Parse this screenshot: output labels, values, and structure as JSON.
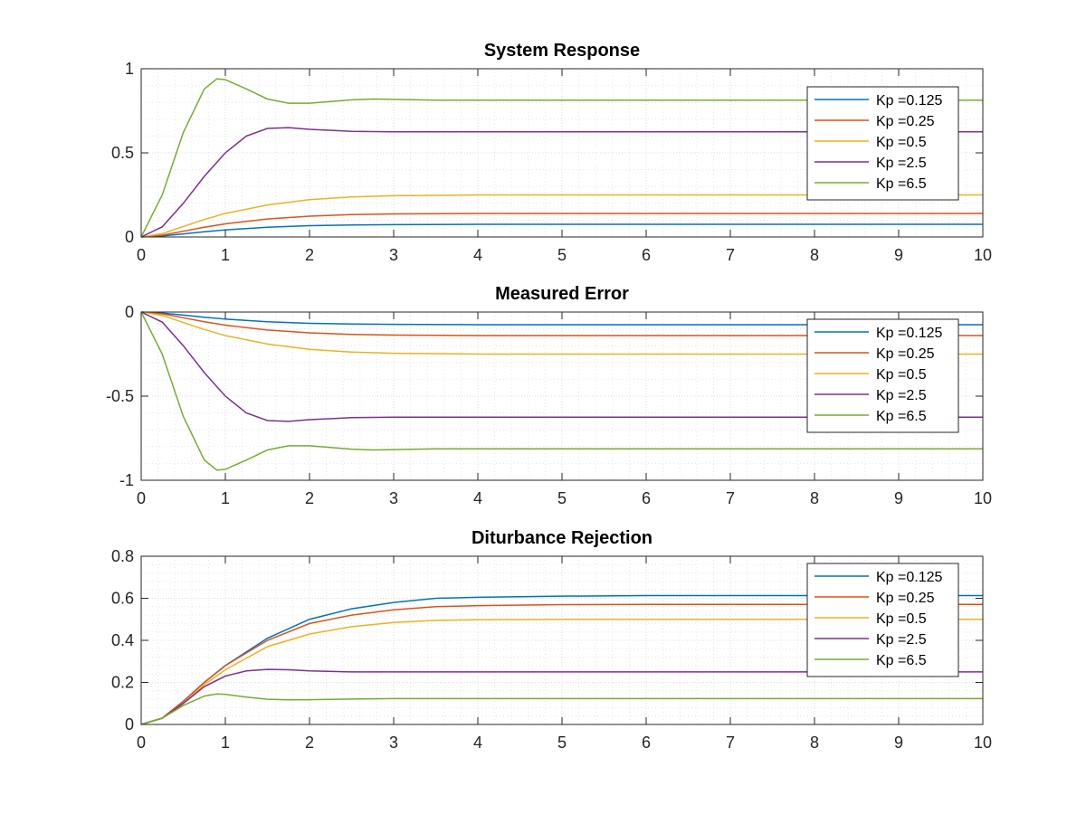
{
  "chart_data": [
    {
      "type": "line",
      "title": "System Response",
      "xlabel": "",
      "ylabel": "",
      "xlim": [
        0,
        10
      ],
      "ylim": [
        0,
        1
      ],
      "xticks": [
        "0",
        "1",
        "2",
        "3",
        "4",
        "5",
        "6",
        "7",
        "8",
        "9",
        "10"
      ],
      "yticks": [
        "0",
        "0.5",
        "1"
      ],
      "grid": true,
      "minor_grid": true,
      "legend_location": "top-right",
      "series": [
        {
          "name": "Kp =0.125",
          "color": "#0072BD",
          "x": [
            0,
            0.25,
            0.5,
            0.75,
            1,
            1.5,
            2,
            2.5,
            3,
            4,
            5,
            6,
            7,
            8,
            9,
            10
          ],
          "y": [
            0,
            0.006,
            0.018,
            0.031,
            0.042,
            0.058,
            0.067,
            0.071,
            0.073,
            0.075,
            0.075,
            0.075,
            0.075,
            0.075,
            0.075,
            0.075
          ]
        },
        {
          "name": "Kp =0.25",
          "color": "#D95319",
          "x": [
            0,
            0.25,
            0.5,
            0.75,
            1,
            1.5,
            2,
            2.5,
            3,
            4,
            5,
            6,
            7,
            8,
            9,
            10
          ],
          "y": [
            0,
            0.011,
            0.034,
            0.058,
            0.078,
            0.107,
            0.124,
            0.133,
            0.137,
            0.14,
            0.14,
            0.14,
            0.14,
            0.14,
            0.14,
            0.14
          ]
        },
        {
          "name": "Kp =0.5",
          "color": "#EDB120",
          "x": [
            0,
            0.25,
            0.5,
            0.75,
            1,
            1.5,
            2,
            2.5,
            3,
            4,
            5,
            6,
            7,
            8,
            9,
            10
          ],
          "y": [
            0,
            0.02,
            0.062,
            0.104,
            0.14,
            0.19,
            0.222,
            0.238,
            0.245,
            0.25,
            0.25,
            0.25,
            0.25,
            0.25,
            0.25,
            0.25
          ]
        },
        {
          "name": "Kp =2.5",
          "color": "#7E2F8E",
          "x": [
            0,
            0.25,
            0.5,
            0.75,
            1,
            1.25,
            1.5,
            1.75,
            2,
            2.5,
            3,
            4,
            5,
            6,
            7,
            8,
            9,
            10
          ],
          "y": [
            0,
            0.06,
            0.2,
            0.36,
            0.5,
            0.6,
            0.645,
            0.65,
            0.64,
            0.628,
            0.625,
            0.625,
            0.625,
            0.625,
            0.625,
            0.625,
            0.625,
            0.625
          ]
        },
        {
          "name": "Kp =6.5",
          "color": "#77AC30",
          "x": [
            0,
            0.25,
            0.5,
            0.75,
            0.9,
            1,
            1.25,
            1.5,
            1.75,
            2,
            2.25,
            2.5,
            2.75,
            3,
            3.5,
            4,
            5,
            6,
            7,
            8,
            9,
            10
          ],
          "y": [
            0,
            0.25,
            0.62,
            0.88,
            0.94,
            0.935,
            0.88,
            0.82,
            0.795,
            0.795,
            0.805,
            0.815,
            0.82,
            0.818,
            0.813,
            0.813,
            0.813,
            0.813,
            0.813,
            0.813,
            0.813,
            0.813
          ]
        }
      ]
    },
    {
      "type": "line",
      "title": "Measured Error",
      "xlabel": "",
      "ylabel": "",
      "xlim": [
        0,
        10
      ],
      "ylim": [
        -1,
        0
      ],
      "xticks": [
        "0",
        "1",
        "2",
        "3",
        "4",
        "5",
        "6",
        "7",
        "8",
        "9",
        "10"
      ],
      "yticks": [
        "-1",
        "-0.5",
        "0"
      ],
      "grid": true,
      "minor_grid": true,
      "legend_location": "right",
      "series": [
        {
          "name": "Kp =0.125",
          "color": "#0072BD",
          "x": [
            0,
            0.25,
            0.5,
            0.75,
            1,
            1.5,
            2,
            2.5,
            3,
            4,
            5,
            6,
            7,
            8,
            9,
            10
          ],
          "y": [
            0,
            -0.006,
            -0.018,
            -0.031,
            -0.042,
            -0.058,
            -0.067,
            -0.071,
            -0.073,
            -0.075,
            -0.075,
            -0.075,
            -0.075,
            -0.075,
            -0.075,
            -0.075
          ]
        },
        {
          "name": "Kp =0.25",
          "color": "#D95319",
          "x": [
            0,
            0.25,
            0.5,
            0.75,
            1,
            1.5,
            2,
            2.5,
            3,
            4,
            5,
            6,
            7,
            8,
            9,
            10
          ],
          "y": [
            0,
            -0.011,
            -0.034,
            -0.058,
            -0.078,
            -0.107,
            -0.124,
            -0.133,
            -0.137,
            -0.14,
            -0.14,
            -0.14,
            -0.14,
            -0.14,
            -0.14,
            -0.14
          ]
        },
        {
          "name": "Kp =0.5",
          "color": "#EDB120",
          "x": [
            0,
            0.25,
            0.5,
            0.75,
            1,
            1.5,
            2,
            2.5,
            3,
            4,
            5,
            6,
            7,
            8,
            9,
            10
          ],
          "y": [
            0,
            -0.02,
            -0.062,
            -0.104,
            -0.14,
            -0.19,
            -0.222,
            -0.238,
            -0.245,
            -0.25,
            -0.25,
            -0.25,
            -0.25,
            -0.25,
            -0.25,
            -0.25
          ]
        },
        {
          "name": "Kp =2.5",
          "color": "#7E2F8E",
          "x": [
            0,
            0.25,
            0.5,
            0.75,
            1,
            1.25,
            1.5,
            1.75,
            2,
            2.5,
            3,
            4,
            5,
            6,
            7,
            8,
            9,
            10
          ],
          "y": [
            0,
            -0.06,
            -0.2,
            -0.36,
            -0.5,
            -0.6,
            -0.645,
            -0.65,
            -0.64,
            -0.628,
            -0.625,
            -0.625,
            -0.625,
            -0.625,
            -0.625,
            -0.625,
            -0.625,
            -0.625
          ]
        },
        {
          "name": "Kp =6.5",
          "color": "#77AC30",
          "x": [
            0,
            0.25,
            0.5,
            0.75,
            0.9,
            1,
            1.25,
            1.5,
            1.75,
            2,
            2.25,
            2.5,
            2.75,
            3,
            3.5,
            4,
            5,
            6,
            7,
            8,
            9,
            10
          ],
          "y": [
            0,
            -0.25,
            -0.62,
            -0.88,
            -0.94,
            -0.935,
            -0.88,
            -0.82,
            -0.795,
            -0.795,
            -0.805,
            -0.815,
            -0.82,
            -0.818,
            -0.813,
            -0.813,
            -0.813,
            -0.813,
            -0.813,
            -0.813,
            -0.813,
            -0.813
          ]
        }
      ]
    },
    {
      "type": "line",
      "title": "Diturbance Rejection",
      "xlabel": "",
      "ylabel": "",
      "xlim": [
        0,
        10
      ],
      "ylim": [
        0,
        0.8
      ],
      "xticks": [
        "0",
        "1",
        "2",
        "3",
        "4",
        "5",
        "6",
        "7",
        "8",
        "9",
        "10"
      ],
      "yticks": [
        "0",
        "0.2",
        "0.4",
        "0.6",
        "0.8"
      ],
      "grid": true,
      "minor_grid": true,
      "legend_location": "top-right",
      "series": [
        {
          "name": "Kp =0.125",
          "color": "#0072BD",
          "x": [
            0,
            0.25,
            0.5,
            0.75,
            1,
            1.5,
            2,
            2.5,
            3,
            3.5,
            4,
            5,
            6,
            7,
            8,
            9,
            10
          ],
          "y": [
            0,
            0.03,
            0.11,
            0.2,
            0.28,
            0.41,
            0.5,
            0.55,
            0.58,
            0.6,
            0.605,
            0.61,
            0.613,
            0.613,
            0.613,
            0.613,
            0.613
          ]
        },
        {
          "name": "Kp =0.25",
          "color": "#D95319",
          "x": [
            0,
            0.25,
            0.5,
            0.75,
            1,
            1.5,
            2,
            2.5,
            3,
            3.5,
            4,
            5,
            6,
            7,
            8,
            9,
            10
          ],
          "y": [
            0,
            0.03,
            0.11,
            0.2,
            0.28,
            0.4,
            0.48,
            0.52,
            0.545,
            0.56,
            0.565,
            0.57,
            0.571,
            0.571,
            0.571,
            0.571,
            0.571
          ]
        },
        {
          "name": "Kp =0.5",
          "color": "#EDB120",
          "x": [
            0,
            0.25,
            0.5,
            0.75,
            1,
            1.5,
            2,
            2.5,
            3,
            3.5,
            4,
            5,
            6,
            7,
            8,
            9,
            10
          ],
          "y": [
            0,
            0.03,
            0.1,
            0.19,
            0.26,
            0.37,
            0.43,
            0.465,
            0.485,
            0.495,
            0.498,
            0.5,
            0.5,
            0.5,
            0.5,
            0.5,
            0.5
          ]
        },
        {
          "name": "Kp =2.5",
          "color": "#7E2F8E",
          "x": [
            0,
            0.25,
            0.5,
            0.75,
            1,
            1.25,
            1.5,
            1.75,
            2,
            2.5,
            3,
            4,
            5,
            6,
            7,
            8,
            9,
            10
          ],
          "y": [
            0,
            0.03,
            0.1,
            0.18,
            0.23,
            0.255,
            0.262,
            0.26,
            0.255,
            0.25,
            0.25,
            0.25,
            0.25,
            0.25,
            0.25,
            0.25,
            0.25,
            0.25
          ]
        },
        {
          "name": "Kp =6.5",
          "color": "#77AC30",
          "x": [
            0,
            0.25,
            0.5,
            0.75,
            0.9,
            1,
            1.25,
            1.5,
            1.75,
            2,
            2.5,
            3,
            4,
            5,
            6,
            7,
            8,
            9,
            10
          ],
          "y": [
            0,
            0.03,
            0.09,
            0.135,
            0.145,
            0.143,
            0.13,
            0.12,
            0.117,
            0.118,
            0.121,
            0.123,
            0.123,
            0.123,
            0.123,
            0.123,
            0.123,
            0.123,
            0.123
          ]
        }
      ]
    }
  ]
}
